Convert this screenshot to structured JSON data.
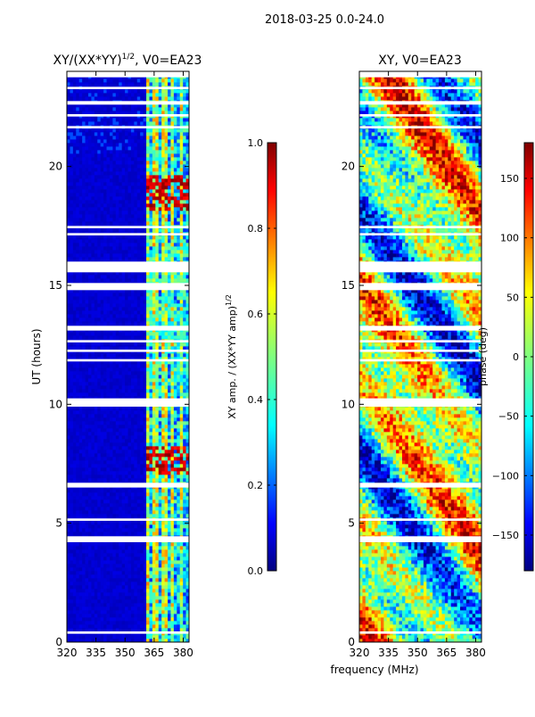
{
  "suptitle": "2018-03-25 0.0-24.0",
  "xlabel": "frequency (MHz)",
  "colors": {
    "jet": [
      "#00007f",
      "#0000ff",
      "#007fff",
      "#00ffff",
      "#7fff7f",
      "#ffff00",
      "#ff7f00",
      "#ff0000",
      "#7f0000"
    ],
    "background": "#ffffff"
  },
  "chart_data": [
    {
      "type": "heatmap",
      "title": "XY/(XX*YY)",
      "title_power": "1/2",
      "title_suffix": ", V0=EA23",
      "xlabel": "",
      "ylabel": "UT (hours)",
      "xlim": [
        320,
        383
      ],
      "ylim": [
        0,
        24
      ],
      "xticks": [
        320,
        335,
        350,
        365,
        380
      ],
      "xtick_labels": [
        "320",
        "335",
        "350",
        "365",
        "380"
      ],
      "yticks": [
        0,
        5,
        10,
        15,
        20
      ],
      "ytick_labels": [
        "0",
        "5",
        "10",
        "15",
        "20"
      ],
      "colorbar": {
        "label": "XY amp. / (XX*YY amp)",
        "label_power": "1/2",
        "range": [
          0.0,
          1.0
        ],
        "ticks": [
          0.0,
          0.2,
          0.4,
          0.6,
          0.8,
          1.0
        ],
        "tick_labels": [
          "0.0",
          "0.2",
          "0.4",
          "0.6",
          "0.8",
          "1.0"
        ]
      },
      "flagged_ut_ranges": [
        [
          0.35,
          0.45
        ],
        [
          4.2,
          4.45
        ],
        [
          5.1,
          5.2
        ],
        [
          6.5,
          6.7
        ],
        [
          9.9,
          10.25
        ],
        [
          11.8,
          11.9
        ],
        [
          12.2,
          12.3
        ],
        [
          12.6,
          12.7
        ],
        [
          13.1,
          13.3
        ],
        [
          14.8,
          15.1
        ],
        [
          15.55,
          16.0
        ],
        [
          17.1,
          17.2
        ],
        [
          17.4,
          17.5
        ],
        [
          21.6,
          21.7
        ],
        [
          22.1,
          22.2
        ],
        [
          22.6,
          22.75
        ],
        [
          23.25,
          23.35
        ],
        [
          23.75,
          24.0
        ]
      ]
    },
    {
      "type": "heatmap",
      "title": "XY, V0=EA23",
      "xlabel": "",
      "ylabel": "",
      "xlim": [
        320,
        383
      ],
      "ylim": [
        0,
        24
      ],
      "xticks": [
        320,
        335,
        350,
        365,
        380
      ],
      "xtick_labels": [
        "320",
        "335",
        "350",
        "365",
        "380"
      ],
      "yticks": [
        0,
        5,
        10,
        15,
        20
      ],
      "ytick_labels": [
        "0",
        "5",
        "10",
        "15",
        "20"
      ],
      "colorbar": {
        "label": "phase (deg)",
        "range": [
          -180,
          180
        ],
        "ticks": [
          -150,
          -100,
          -50,
          0,
          50,
          100,
          150
        ],
        "tick_labels": [
          "−150",
          "−100",
          "−50",
          "0",
          "50",
          "100",
          "150"
        ]
      },
      "flagged_ut_ranges": [
        [
          0.35,
          0.45
        ],
        [
          4.2,
          4.45
        ],
        [
          5.1,
          5.2
        ],
        [
          6.5,
          6.7
        ],
        [
          9.9,
          10.25
        ],
        [
          11.8,
          11.9
        ],
        [
          12.2,
          12.3
        ],
        [
          12.6,
          12.7
        ],
        [
          13.1,
          13.3
        ],
        [
          14.8,
          15.1
        ],
        [
          15.55,
          16.0
        ],
        [
          17.1,
          17.2
        ],
        [
          17.4,
          17.5
        ],
        [
          21.6,
          21.7
        ],
        [
          22.1,
          22.2
        ],
        [
          22.6,
          22.75
        ],
        [
          23.25,
          23.35
        ],
        [
          23.75,
          24.0
        ]
      ]
    }
  ]
}
